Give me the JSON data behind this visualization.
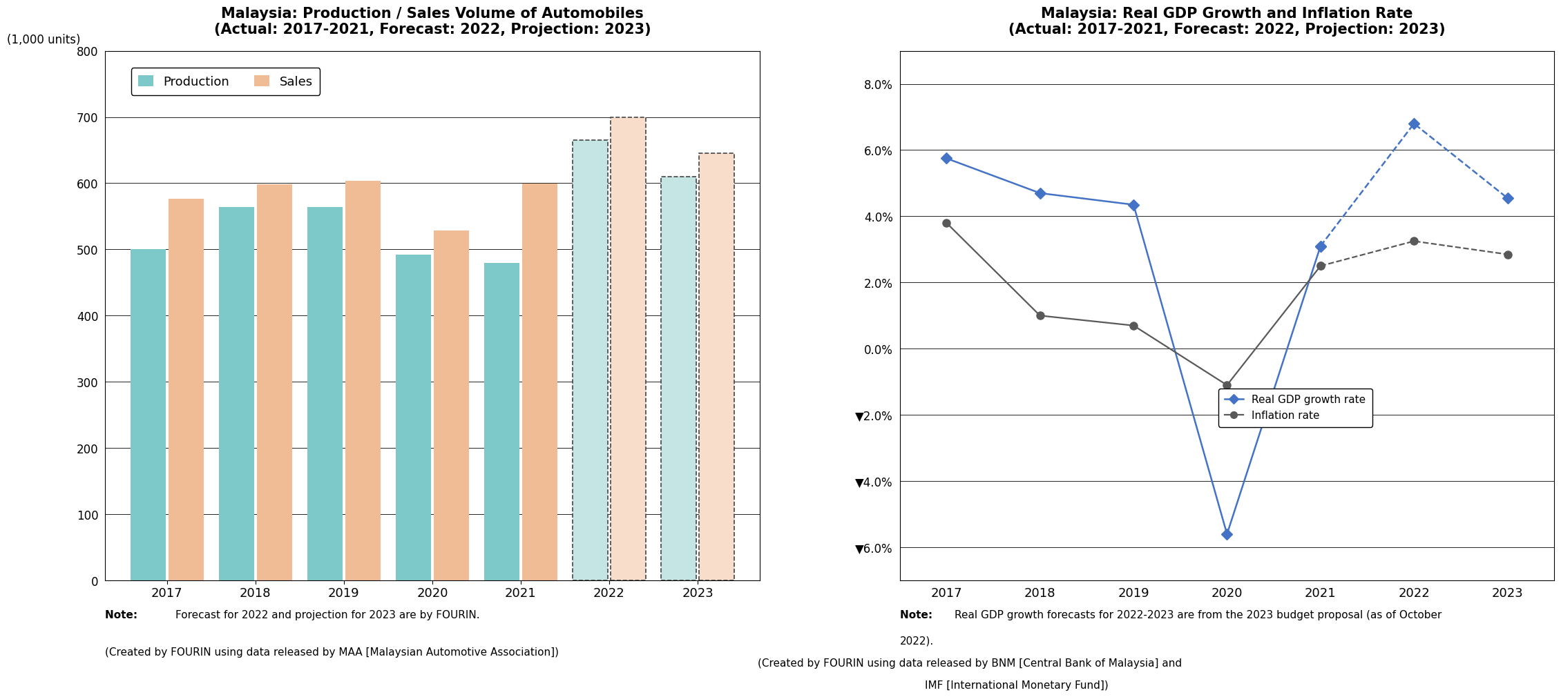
{
  "bar_title1": "Malaysia: Production / Sales Volume of Automobiles",
  "bar_title2": "(Actual: 2017-2021, Forecast: 2022, Projection: 2023)",
  "bar_ylabel": "(1,000 units)",
  "bar_years": [
    2017,
    2018,
    2019,
    2020,
    2021,
    2022,
    2023
  ],
  "production": [
    500,
    564,
    564,
    492,
    480,
    665,
    610
  ],
  "sales": [
    576,
    598,
    604,
    529,
    599,
    700,
    645
  ],
  "production_color_solid": "#7DC8C8",
  "sales_color_solid": "#F0BC96",
  "production_color_forecast": "#C5E4E4",
  "sales_color_forecast": "#F8DECA",
  "bar_ylim": [
    0,
    800
  ],
  "bar_yticks": [
    0,
    100,
    200,
    300,
    400,
    500,
    600,
    700,
    800
  ],
  "bar_note1": "Forecast for 2022 and projection for 2023 are by FOURIN.",
  "bar_note2": "(Created by FOURIN using data released by MAA [Malaysian Automotive Association])",
  "line_title1": "Malaysia: Real GDP Growth and Inflation Rate",
  "line_title2": "(Actual: 2017-2021, Forecast: 2022, Projection: 2023)",
  "line_years": [
    2017,
    2018,
    2019,
    2020,
    2021,
    2022,
    2023
  ],
  "gdp_growth": [
    5.75,
    4.7,
    4.35,
    -5.6,
    3.1,
    6.8,
    4.55
  ],
  "inflation": [
    3.8,
    1.0,
    0.7,
    -1.1,
    2.5,
    3.25,
    2.85
  ],
  "gdp_color": "#4472C4",
  "inflation_color": "#595959",
  "line_ylim": [
    -7.0,
    9.0
  ],
  "line_yticks": [
    8.0,
    6.0,
    4.0,
    2.0,
    0.0,
    -2.0,
    -4.0,
    -6.0
  ],
  "line_yticklabels": [
    "8.0%",
    "6.0%",
    "4.0%",
    "2.0%",
    "0.0%",
    "▼2.0%",
    "▼4.0%",
    "▼6.0%"
  ],
  "line_note1": "Real GDP growth forecasts for 2022-2023 are from the 2023 budget proposal (as of October",
  "line_note2": "2022).",
  "line_note3": "(Created by FOURIN using data released by BNM [Central Bank of Malaysia] and",
  "line_note4": "IMF [International Monetary Fund])"
}
